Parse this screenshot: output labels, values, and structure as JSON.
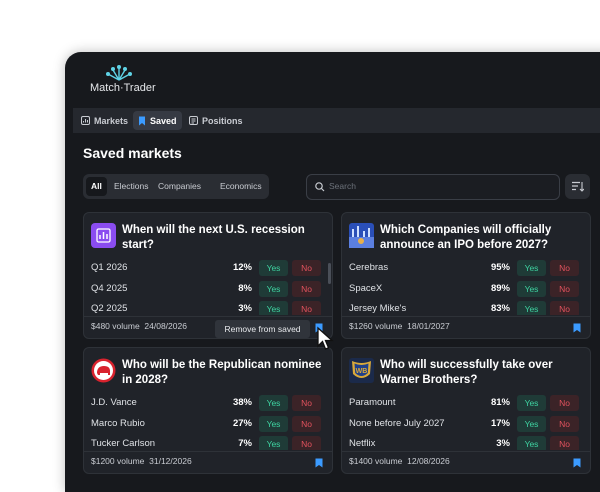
{
  "logo": "Match·Trader",
  "tabs": [
    "Markets",
    "Saved",
    "Positions"
  ],
  "heading": "Saved markets",
  "filters": [
    "All",
    "Elections",
    "Companies",
    "Economics"
  ],
  "search_placeholder": "Search",
  "buttons": {
    "yes": "Yes",
    "no": "No"
  },
  "tooltip": "Remove from saved",
  "cards": [
    {
      "title": "When will the next U.S. recession start?",
      "rows": [
        {
          "label": "Q1 2026",
          "percent": "12%"
        },
        {
          "label": "Q4 2025",
          "percent": "8%"
        },
        {
          "label": "Q2 2025",
          "percent": "3%"
        }
      ],
      "volume": "$480 volume",
      "date": "24/08/2026"
    },
    {
      "title": "Which Companies will officially announce an IPO before 2027?",
      "rows": [
        {
          "label": "Cerebras",
          "percent": "95%"
        },
        {
          "label": "SpaceX",
          "percent": "89%"
        },
        {
          "label": "Jersey Mike's",
          "percent": "83%"
        }
      ],
      "volume": "$1260 volume",
      "date": "18/01/2027"
    },
    {
      "title": "Who will be the Republican nominee in 2028?",
      "rows": [
        {
          "label": "J.D. Vance",
          "percent": "38%"
        },
        {
          "label": "Marco Rubio",
          "percent": "27%"
        },
        {
          "label": "Tucker Carlson",
          "percent": "7%"
        }
      ],
      "volume": "$1200 volume",
      "date": "31/12/2026"
    },
    {
      "title": "Who will successfully take over Warner Brothers?",
      "rows": [
        {
          "label": "Paramount",
          "percent": "81%"
        },
        {
          "label": "None before July 2027",
          "percent": "17%"
        },
        {
          "label": "Netflix",
          "percent": "3%"
        }
      ],
      "volume": "$1400 volume",
      "date": "12/08/2026"
    }
  ]
}
